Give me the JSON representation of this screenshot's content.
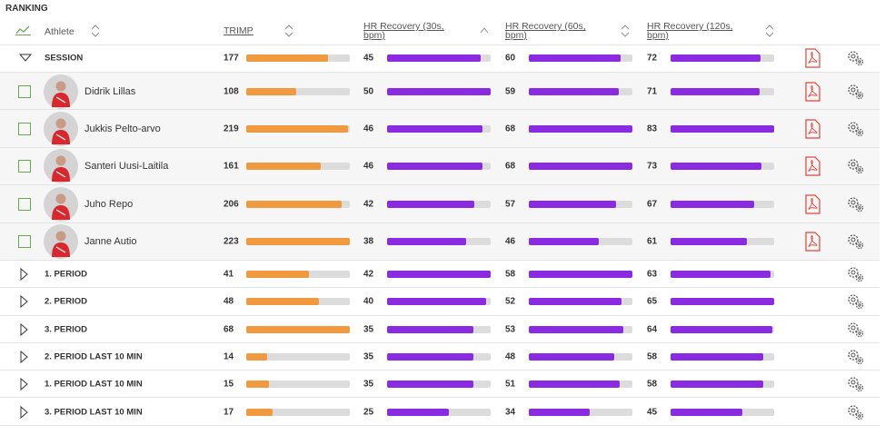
{
  "header": {
    "title": "RANKING"
  },
  "table": {
    "columns": [
      "Athlete",
      "TRIMP",
      "HR Recovery (30s, bpm)",
      "HR Recovery (60s, bpm)",
      "HR Recovery (120s, bpm)"
    ],
    "session": {
      "label": "SESSION",
      "values": [
        177,
        45,
        60,
        72
      ]
    },
    "athletes": [
      {
        "name": "Didrik Lillas",
        "values": [
          108,
          50,
          59,
          71
        ]
      },
      {
        "name": "Jukkis Pelto-arvo",
        "values": [
          219,
          46,
          68,
          83
        ]
      },
      {
        "name": "Santeri Uusi-Laitila",
        "values": [
          161,
          46,
          68,
          73
        ]
      },
      {
        "name": "Juho Repo",
        "values": [
          206,
          42,
          57,
          67
        ]
      },
      {
        "name": "Janne Autio",
        "values": [
          223,
          38,
          46,
          61
        ]
      }
    ],
    "periods": [
      {
        "label": "1. PERIOD",
        "values": [
          41,
          42,
          58,
          63
        ]
      },
      {
        "label": "2. PERIOD",
        "values": [
          48,
          40,
          52,
          65
        ]
      },
      {
        "label": "3. PERIOD",
        "values": [
          68,
          35,
          53,
          64
        ]
      },
      {
        "label": "2. PERIOD LAST 10 MIN",
        "values": [
          14,
          35,
          48,
          58
        ]
      },
      {
        "label": "1. PERIOD LAST 10 MIN",
        "values": [
          15,
          35,
          51,
          58
        ]
      },
      {
        "label": "3. PERIOD LAST 10 MIN",
        "values": [
          17,
          25,
          34,
          45
        ]
      }
    ]
  }
}
